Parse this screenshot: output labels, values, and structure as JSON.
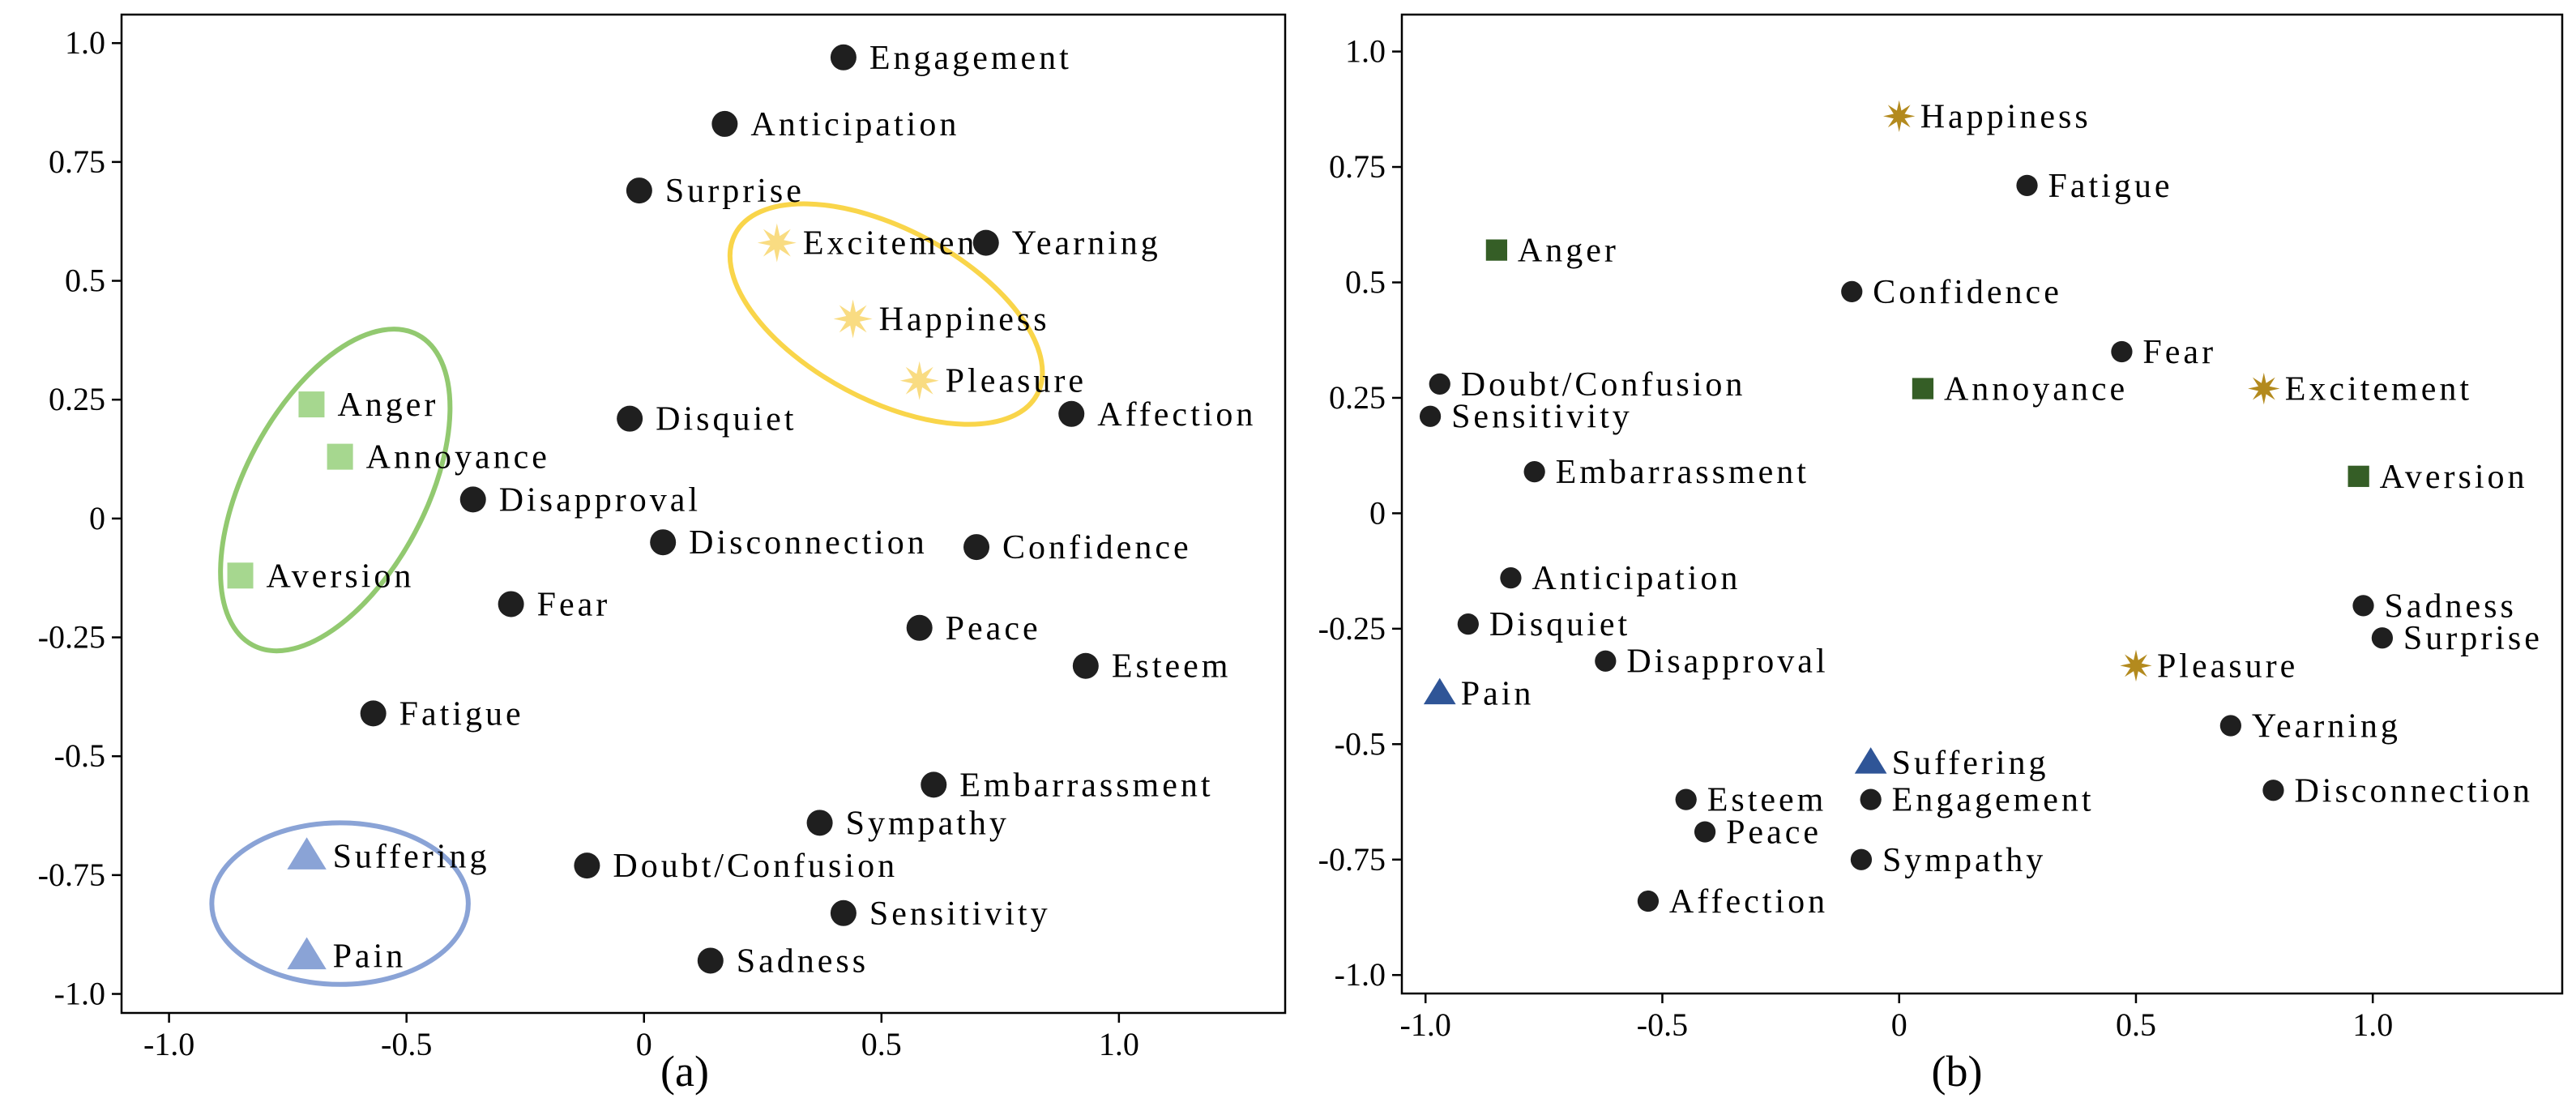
{
  "chart_data": [
    {
      "type": "scatter",
      "panel_label": "(a)",
      "xlim": [
        -1.1,
        1.35
      ],
      "ylim": [
        -1.04,
        1.06
      ],
      "xticks": [
        -1.0,
        -0.5,
        0,
        0.5,
        1.0
      ],
      "xtick_labels": [
        "-1.0",
        "-0.5",
        "0",
        "0.5",
        "1.0"
      ],
      "yticks": [
        1.0,
        0.75,
        0.5,
        0.25,
        0,
        -0.25,
        -0.5,
        -0.75,
        -1.0
      ],
      "ytick_labels": [
        "1.0",
        "0.75",
        "0.5",
        "0.25",
        "0",
        "-0.25",
        "-0.5",
        "-0.75",
        "-1.0"
      ],
      "points": [
        {
          "label": "Engagement",
          "x": 0.42,
          "y": 0.97,
          "marker": "circle",
          "color": "#1f1f1f"
        },
        {
          "label": "Anticipation",
          "x": 0.17,
          "y": 0.83,
          "marker": "circle",
          "color": "#1f1f1f"
        },
        {
          "label": "Surprise",
          "x": -0.01,
          "y": 0.69,
          "marker": "circle",
          "color": "#1f1f1f"
        },
        {
          "label": "Excitement",
          "x": 0.28,
          "y": 0.58,
          "marker": "star",
          "color": "#f9dc82"
        },
        {
          "label": "Yearning",
          "x": 0.72,
          "y": 0.58,
          "marker": "circle",
          "color": "#1f1f1f"
        },
        {
          "label": "Happiness",
          "x": 0.44,
          "y": 0.42,
          "marker": "star",
          "color": "#f9dc82"
        },
        {
          "label": "Pleasure",
          "x": 0.58,
          "y": 0.29,
          "marker": "star",
          "color": "#f9dc82"
        },
        {
          "label": "Affection",
          "x": 0.9,
          "y": 0.22,
          "marker": "circle",
          "color": "#1f1f1f"
        },
        {
          "label": "Disquiet",
          "x": -0.03,
          "y": 0.21,
          "marker": "circle",
          "color": "#1f1f1f"
        },
        {
          "label": "Anger",
          "x": -0.7,
          "y": 0.24,
          "marker": "square",
          "color": "#a6d78f"
        },
        {
          "label": "Annoyance",
          "x": -0.64,
          "y": 0.13,
          "marker": "square",
          "color": "#a6d78f"
        },
        {
          "label": "Disapproval",
          "x": -0.36,
          "y": 0.04,
          "marker": "circle",
          "color": "#1f1f1f"
        },
        {
          "label": "Disconnection",
          "x": 0.04,
          "y": -0.05,
          "marker": "circle",
          "color": "#1f1f1f"
        },
        {
          "label": "Confidence",
          "x": 0.7,
          "y": -0.06,
          "marker": "circle",
          "color": "#1f1f1f"
        },
        {
          "label": "Aversion",
          "x": -0.85,
          "y": -0.12,
          "marker": "square",
          "color": "#a6d78f"
        },
        {
          "label": "Fear",
          "x": -0.28,
          "y": -0.18,
          "marker": "circle",
          "color": "#1f1f1f"
        },
        {
          "label": "Peace",
          "x": 0.58,
          "y": -0.23,
          "marker": "circle",
          "color": "#1f1f1f"
        },
        {
          "label": "Esteem",
          "x": 0.93,
          "y": -0.31,
          "marker": "circle",
          "color": "#1f1f1f"
        },
        {
          "label": "Fatigue",
          "x": -0.57,
          "y": -0.41,
          "marker": "circle",
          "color": "#1f1f1f"
        },
        {
          "label": "Embarrassment",
          "x": 0.61,
          "y": -0.56,
          "marker": "circle",
          "color": "#1f1f1f"
        },
        {
          "label": "Sympathy",
          "x": 0.37,
          "y": -0.64,
          "marker": "circle",
          "color": "#1f1f1f"
        },
        {
          "label": "Suffering",
          "x": -0.71,
          "y": -0.71,
          "marker": "triangle",
          "color": "#8aa3d6"
        },
        {
          "label": "Doubt/Confusion",
          "x": -0.12,
          "y": -0.73,
          "marker": "circle",
          "color": "#1f1f1f"
        },
        {
          "label": "Sensitivity",
          "x": 0.42,
          "y": -0.83,
          "marker": "circle",
          "color": "#1f1f1f"
        },
        {
          "label": "Pain",
          "x": -0.71,
          "y": -0.92,
          "marker": "triangle",
          "color": "#8aa3d6"
        },
        {
          "label": "Sadness",
          "x": 0.14,
          "y": -0.93,
          "marker": "circle",
          "color": "#1f1f1f"
        }
      ],
      "clusters": [
        {
          "name": "positive-cluster",
          "color": "#f9d54a",
          "cx": 0.51,
          "cy": 0.43,
          "rx": 0.36,
          "ry": 0.18,
          "rotation_deg": 28
        },
        {
          "name": "anger-cluster",
          "color": "#92c970",
          "cx": -0.65,
          "cy": 0.06,
          "rx": 0.37,
          "ry": 0.19,
          "rotation_deg": -62
        },
        {
          "name": "pain-cluster",
          "color": "#8aa3d6",
          "cx": -0.64,
          "cy": -0.81,
          "rx": 0.27,
          "ry": 0.17,
          "rotation_deg": 0
        }
      ]
    },
    {
      "type": "scatter",
      "panel_label": "(b)",
      "xlim": [
        -1.05,
        1.4
      ],
      "ylim": [
        -1.04,
        1.08
      ],
      "xticks": [
        -1.0,
        -0.5,
        0,
        0.5,
        1.0
      ],
      "xtick_labels": [
        "-1.0",
        "-0.5",
        "0",
        "0.5",
        "1.0"
      ],
      "yticks": [
        1.0,
        0.75,
        0.5,
        0.25,
        0,
        -0.25,
        -0.5,
        -0.75,
        -1.0
      ],
      "ytick_labels": [
        "1.0",
        "0.75",
        "0.5",
        "0.25",
        "0",
        "-0.25",
        "-0.5",
        "-0.75",
        "-1.0"
      ],
      "points": [
        {
          "label": "Happiness",
          "x": 0.0,
          "y": 0.86,
          "marker": "star",
          "color": "#b38a1e"
        },
        {
          "label": "Fatigue",
          "x": 0.27,
          "y": 0.71,
          "marker": "circle",
          "color": "#1f1f1f"
        },
        {
          "label": "Anger",
          "x": -0.85,
          "y": 0.57,
          "marker": "square",
          "color": "#355e26"
        },
        {
          "label": "Confidence",
          "x": -0.1,
          "y": 0.48,
          "marker": "circle",
          "color": "#1f1f1f"
        },
        {
          "label": "Fear",
          "x": 0.47,
          "y": 0.35,
          "marker": "circle",
          "color": "#1f1f1f"
        },
        {
          "label": "Doubt/Confusion",
          "x": -0.97,
          "y": 0.28,
          "marker": "circle",
          "color": "#1f1f1f"
        },
        {
          "label": "Annoyance",
          "x": 0.05,
          "y": 0.27,
          "marker": "square",
          "color": "#355e26"
        },
        {
          "label": "Excitement",
          "x": 0.77,
          "y": 0.27,
          "marker": "star",
          "color": "#b38a1e"
        },
        {
          "label": "Sensitivity",
          "x": -0.99,
          "y": 0.21,
          "marker": "circle",
          "color": "#1f1f1f"
        },
        {
          "label": "Embarrassment",
          "x": -0.77,
          "y": 0.09,
          "marker": "circle",
          "color": "#1f1f1f"
        },
        {
          "label": "Aversion",
          "x": 0.97,
          "y": 0.08,
          "marker": "square",
          "color": "#355e26"
        },
        {
          "label": "Anticipation",
          "x": -0.82,
          "y": -0.14,
          "marker": "circle",
          "color": "#1f1f1f"
        },
        {
          "label": "Sadness",
          "x": 0.98,
          "y": -0.2,
          "marker": "circle",
          "color": "#1f1f1f"
        },
        {
          "label": "Disquiet",
          "x": -0.91,
          "y": -0.24,
          "marker": "circle",
          "color": "#1f1f1f"
        },
        {
          "label": "Surprise",
          "x": 1.02,
          "y": -0.27,
          "marker": "circle",
          "color": "#1f1f1f"
        },
        {
          "label": "Disapproval",
          "x": -0.62,
          "y": -0.32,
          "marker": "circle",
          "color": "#1f1f1f"
        },
        {
          "label": "Pleasure",
          "x": 0.5,
          "y": -0.33,
          "marker": "star",
          "color": "#b38a1e"
        },
        {
          "label": "Pain",
          "x": -0.97,
          "y": -0.39,
          "marker": "triangle",
          "color": "#2f5597"
        },
        {
          "label": "Yearning",
          "x": 0.7,
          "y": -0.46,
          "marker": "circle",
          "color": "#1f1f1f"
        },
        {
          "label": "Suffering",
          "x": -0.06,
          "y": -0.54,
          "marker": "triangle",
          "color": "#2f5597"
        },
        {
          "label": "Disconnection",
          "x": 0.79,
          "y": -0.6,
          "marker": "circle",
          "color": "#1f1f1f"
        },
        {
          "label": "Esteem",
          "x": -0.45,
          "y": -0.62,
          "marker": "circle",
          "color": "#1f1f1f"
        },
        {
          "label": "Engagement",
          "x": -0.06,
          "y": -0.62,
          "marker": "circle",
          "color": "#1f1f1f"
        },
        {
          "label": "Peace",
          "x": -0.41,
          "y": -0.69,
          "marker": "circle",
          "color": "#1f1f1f"
        },
        {
          "label": "Sympathy",
          "x": -0.08,
          "y": -0.75,
          "marker": "circle",
          "color": "#1f1f1f"
        },
        {
          "label": "Affection",
          "x": -0.53,
          "y": -0.84,
          "marker": "circle",
          "color": "#1f1f1f"
        }
      ],
      "clusters": []
    }
  ]
}
